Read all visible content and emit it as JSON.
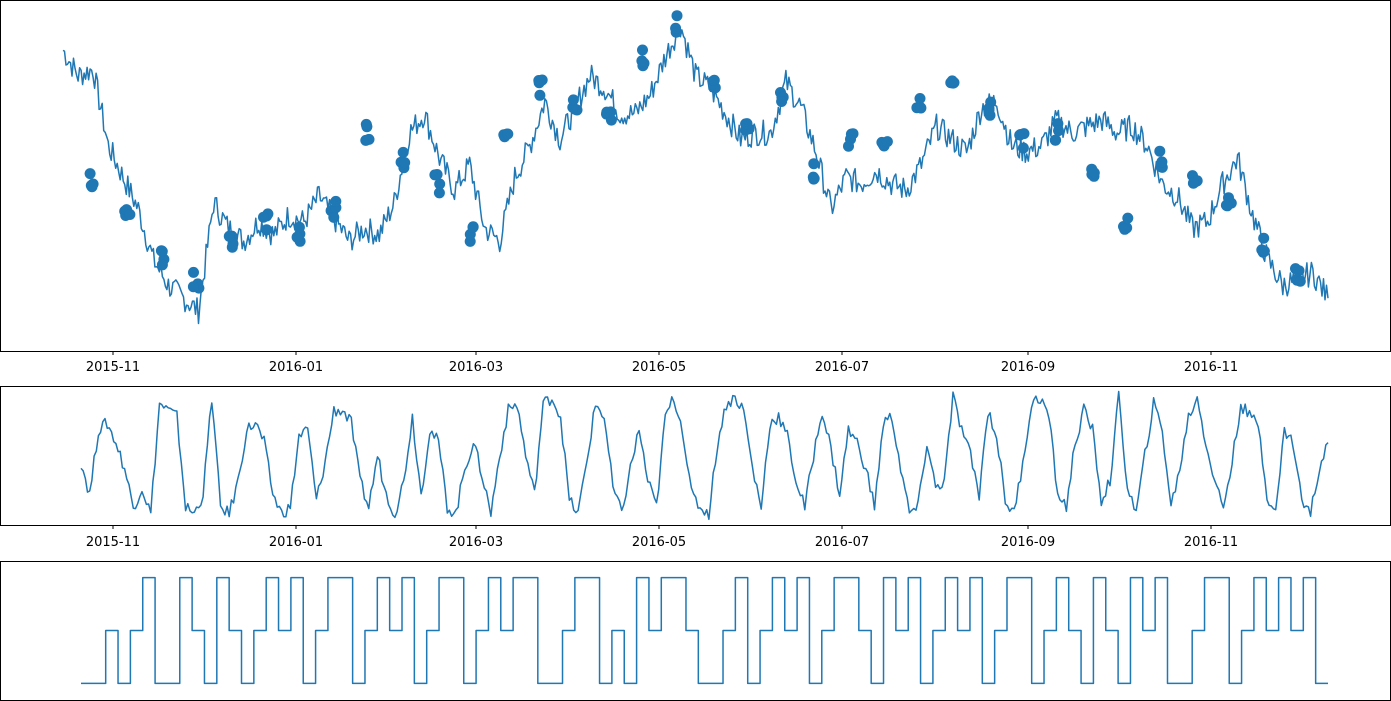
{
  "chart_data": [
    {
      "type": "line",
      "panel": "price",
      "title": "",
      "xlabel": "",
      "ylabel": "",
      "x_tick_labels": [
        "2015-11",
        "2016-01",
        "2016-03",
        "2016-05",
        "2016-07",
        "2016-09",
        "2016-11"
      ],
      "y_tick_labels": [],
      "ylim": [
        0,
        100
      ],
      "series": [
        {
          "color": "#1f77b4",
          "x": [
            "2015-10-20",
            "2015-10-25",
            "2015-10-30",
            "2015-11-04",
            "2015-11-09",
            "2015-11-14",
            "2015-11-19",
            "2015-11-24",
            "2015-11-29",
            "2015-12-01",
            "2015-12-04",
            "2015-12-09",
            "2015-12-14",
            "2015-12-19",
            "2015-12-24",
            "2015-12-29",
            "2016-01-03",
            "2016-01-08",
            "2016-01-13",
            "2016-01-18",
            "2016-01-23",
            "2016-01-28",
            "2016-02-02",
            "2016-02-07",
            "2016-02-12",
            "2016-02-17",
            "2016-02-22",
            "2016-02-27",
            "2016-03-03",
            "2016-03-08",
            "2016-03-13",
            "2016-03-18",
            "2016-03-23",
            "2016-03-28",
            "2016-04-02",
            "2016-04-07",
            "2016-04-12",
            "2016-04-17",
            "2016-04-22",
            "2016-04-27",
            "2016-05-02",
            "2016-05-07",
            "2016-05-12",
            "2016-05-17",
            "2016-05-22",
            "2016-05-27",
            "2016-06-01",
            "2016-06-06",
            "2016-06-11",
            "2016-06-16",
            "2016-06-21",
            "2016-06-26",
            "2016-07-01",
            "2016-07-06",
            "2016-07-11",
            "2016-07-16",
            "2016-07-21",
            "2016-07-26",
            "2016-07-31",
            "2016-08-05",
            "2016-08-10",
            "2016-08-15",
            "2016-08-20",
            "2016-08-25",
            "2016-08-30",
            "2016-09-04",
            "2016-09-09",
            "2016-09-14",
            "2016-09-19",
            "2016-09-24",
            "2016-09-29",
            "2016-10-04",
            "2016-10-09",
            "2016-10-14",
            "2016-10-19",
            "2016-10-24",
            "2016-10-29",
            "2016-11-03",
            "2016-11-08",
            "2016-11-13",
            "2016-11-18",
            "2016-11-23",
            "2016-11-28",
            "2016-12-03",
            "2016-12-08"
          ],
          "y": [
            88,
            80,
            82,
            58,
            48,
            38,
            22,
            14,
            10,
            6,
            40,
            32,
            28,
            34,
            30,
            36,
            34,
            42,
            35,
            28,
            32,
            30,
            40,
            62,
            68,
            54,
            44,
            52,
            32,
            28,
            48,
            58,
            72,
            60,
            70,
            80,
            76,
            68,
            68,
            74,
            86,
            96,
            80,
            76,
            68,
            60,
            62,
            62,
            78,
            70,
            56,
            38,
            48,
            46,
            50,
            46,
            44,
            52,
            64,
            60,
            56,
            70,
            72,
            58,
            56,
            58,
            66,
            62,
            64,
            66,
            62,
            64,
            58,
            46,
            42,
            32,
            34,
            46,
            54,
            36,
            22,
            14,
            16,
            18,
            10
          ],
          "markers_y": [
            48,
            35,
            22,
            16,
            28,
            34,
            30,
            38,
            62,
            54,
            46,
            30,
            60,
            76,
            70,
            68,
            86,
            96,
            78,
            62,
            72,
            50,
            60,
            58,
            70,
            76,
            70,
            60,
            62,
            48,
            34,
            54,
            48,
            42,
            26,
            18
          ]
        }
      ]
    },
    {
      "type": "line",
      "panel": "oscillator",
      "title": "",
      "xlabel": "",
      "ylabel": "",
      "x_tick_labels": [
        "2015-11",
        "2016-01",
        "2016-03",
        "2016-05",
        "2016-07",
        "2016-09",
        "2016-11"
      ],
      "y_tick_labels": [],
      "ylim": [
        0,
        100
      ],
      "series": [
        {
          "color": "#1f77b4",
          "y": [
            45,
            20,
            70,
            75,
            60,
            40,
            10,
            25,
            5,
            90,
            85,
            80,
            10,
            5,
            20,
            95,
            10,
            5,
            30,
            70,
            75,
            60,
            20,
            5,
            10,
            65,
            70,
            15,
            45,
            85,
            85,
            75,
            30,
            10,
            50,
            20,
            5,
            30,
            80,
            20,
            70,
            60,
            10,
            5,
            40,
            60,
            35,
            5,
            50,
            85,
            90,
            50,
            20,
            90,
            95,
            80,
            15,
            5,
            45,
            90,
            80,
            25,
            5,
            40,
            70,
            30,
            10,
            80,
            95,
            70,
            20,
            10,
            5,
            60,
            90,
            95,
            85,
            40,
            10,
            75,
            80,
            65,
            30,
            10,
            50,
            85,
            55,
            20,
            70,
            60,
            40,
            10,
            75,
            80,
            40,
            5,
            10,
            60,
            25,
            30,
            95,
            70,
            50,
            20,
            85,
            65,
            15,
            5,
            45,
            90,
            95,
            80,
            20,
            10,
            60,
            85,
            70,
            15,
            30,
            95,
            25,
            5,
            50,
            90,
            70,
            10,
            40,
            80,
            95,
            60,
            30,
            10,
            45,
            90,
            80,
            75,
            20,
            5,
            70,
            60,
            15,
            5,
            40,
            60
          ]
        }
      ]
    },
    {
      "type": "line",
      "panel": "signal",
      "title": "",
      "xlabel": "",
      "ylabel": "",
      "x_tick_labels": [],
      "y_tick_labels": [],
      "ylim": [
        -1.2,
        1.2
      ],
      "series": [
        {
          "color": "#1f77b4",
          "step": true,
          "y": [
            -1,
            -1,
            0,
            -1,
            0,
            1,
            -1,
            -1,
            1,
            0,
            -1,
            1,
            0,
            -1,
            0,
            1,
            0,
            1,
            -1,
            0,
            1,
            1,
            -1,
            0,
            1,
            0,
            1,
            -1,
            0,
            1,
            1,
            -1,
            0,
            1,
            0,
            1,
            1,
            -1,
            -1,
            0,
            1,
            1,
            -1,
            0,
            -1,
            1,
            0,
            1,
            1,
            0,
            -1,
            -1,
            0,
            1,
            -1,
            0,
            1,
            0,
            1,
            -1,
            0,
            1,
            1,
            0,
            -1,
            1,
            0,
            1,
            -1,
            0,
            1,
            0,
            1,
            -1,
            0,
            1,
            1,
            -1,
            0,
            1,
            0,
            -1,
            1,
            0,
            -1,
            1,
            0,
            1,
            -1,
            -1,
            0,
            1,
            1,
            -1,
            0,
            1,
            0,
            1,
            0,
            1,
            -1,
            -1
          ]
        }
      ]
    }
  ]
}
